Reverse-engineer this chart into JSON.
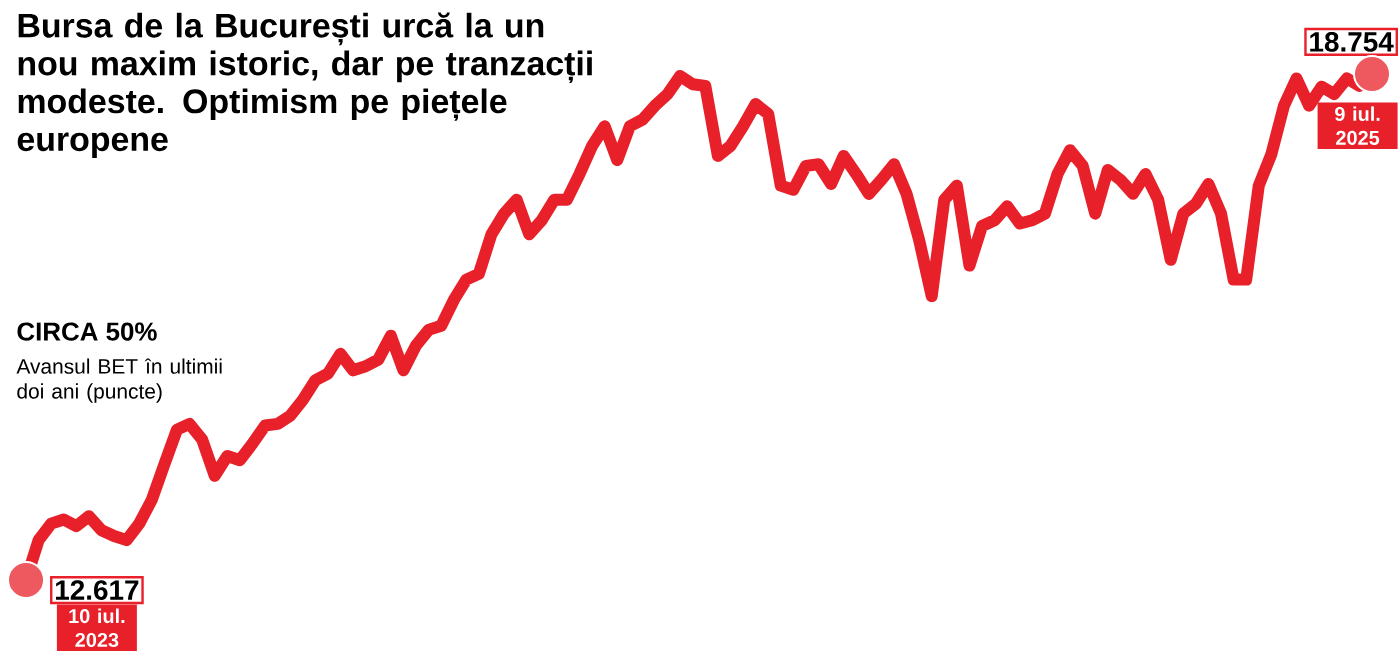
{
  "chart_data": {
    "type": "line",
    "title": "Bursa de la București urcă la un nou maxim istoric, dar pe tranzacții modeste. Optimism pe piețele europene",
    "subtitle": "CIRCA 50%",
    "color": "#e8202a",
    "annotations": [
      "Avansul BET în ultimii doi ani (puncte)",
      "10 iul. 2023",
      "9 iul. 2025"
    ],
    "categories": [
      null,
      null,
      null,
      null,
      null,
      null,
      null,
      null,
      null,
      null,
      null,
      null,
      null,
      null,
      null,
      null,
      null,
      null,
      null,
      null,
      null,
      null,
      null,
      null,
      null,
      null,
      null,
      null,
      null,
      null,
      null,
      null,
      null,
      null,
      null,
      null,
      null,
      null,
      null,
      null,
      null,
      null,
      null,
      null,
      null,
      null,
      null,
      null,
      null,
      null,
      null,
      null,
      null,
      null,
      null,
      null,
      null,
      null,
      null,
      null,
      null,
      null,
      null,
      null,
      null,
      null,
      null,
      null,
      null,
      null,
      null,
      null,
      null,
      null,
      null,
      null,
      null,
      null,
      null,
      null,
      null,
      null,
      null,
      null,
      null,
      null,
      null,
      null,
      null,
      null,
      null,
      null,
      null,
      null,
      null,
      null,
      null,
      null,
      null,
      null,
      null,
      null,
      null,
      null,
      null,
      null,
      null,
      null
    ],
    "values": [
      12617,
      13100,
      13300,
      13350,
      13270,
      13390,
      13220,
      13150,
      13100,
      13300,
      13590,
      14020,
      14440,
      14510,
      14320,
      13880,
      14120,
      14070,
      14270,
      14490,
      14510,
      14610,
      14800,
      15040,
      15120,
      15360,
      15160,
      15210,
      15290,
      15580,
      15160,
      15460,
      15650,
      15700,
      16010,
      16260,
      16330,
      16810,
      17060,
      17230,
      16810,
      16980,
      17230,
      17230,
      17540,
      17880,
      18120,
      17710,
      18120,
      18200,
      18370,
      18510,
      18730,
      18630,
      18610,
      17760,
      17880,
      18120,
      18390,
      18270,
      17400,
      17350,
      17640,
      17660,
      17420,
      17760,
      17540,
      17300,
      17470,
      17660,
      17300,
      16740,
      16060,
      17230,
      17400,
      16430,
      16910,
      16980,
      17150,
      16940,
      16980,
      17060,
      17540,
      17830,
      17640,
      17060,
      17590,
      17470,
      17300,
      17540,
      17230,
      16500,
      17060,
      17180,
      17420,
      17060,
      16260,
      16260,
      17400,
      17780,
      18370,
      18700,
      18370,
      18600,
      18510,
      18700,
      18610,
      18754
    ],
    "value_labels": [
      "12.617",
      null,
      null,
      null,
      null,
      null,
      null,
      null,
      null,
      null,
      null,
      null,
      null,
      null,
      null,
      null,
      null,
      null,
      null,
      null,
      null,
      null,
      null,
      null,
      null,
      null,
      null,
      null,
      null,
      null,
      null,
      null,
      null,
      null,
      null,
      null,
      null,
      null,
      null,
      null,
      null,
      null,
      null,
      null,
      null,
      null,
      null,
      null,
      null,
      null,
      null,
      null,
      null,
      null,
      null,
      null,
      null,
      null,
      null,
      null,
      null,
      null,
      null,
      null,
      null,
      null,
      null,
      null,
      null,
      null,
      null,
      null,
      null,
      null,
      null,
      null,
      null,
      null,
      null,
      null,
      null,
      null,
      null,
      null,
      null,
      null,
      null,
      null,
      null,
      null,
      null,
      null,
      null,
      null,
      null,
      null,
      null,
      null,
      null,
      null,
      null,
      null,
      null,
      null,
      null,
      null,
      null,
      "18.754"
    ]
  }
}
